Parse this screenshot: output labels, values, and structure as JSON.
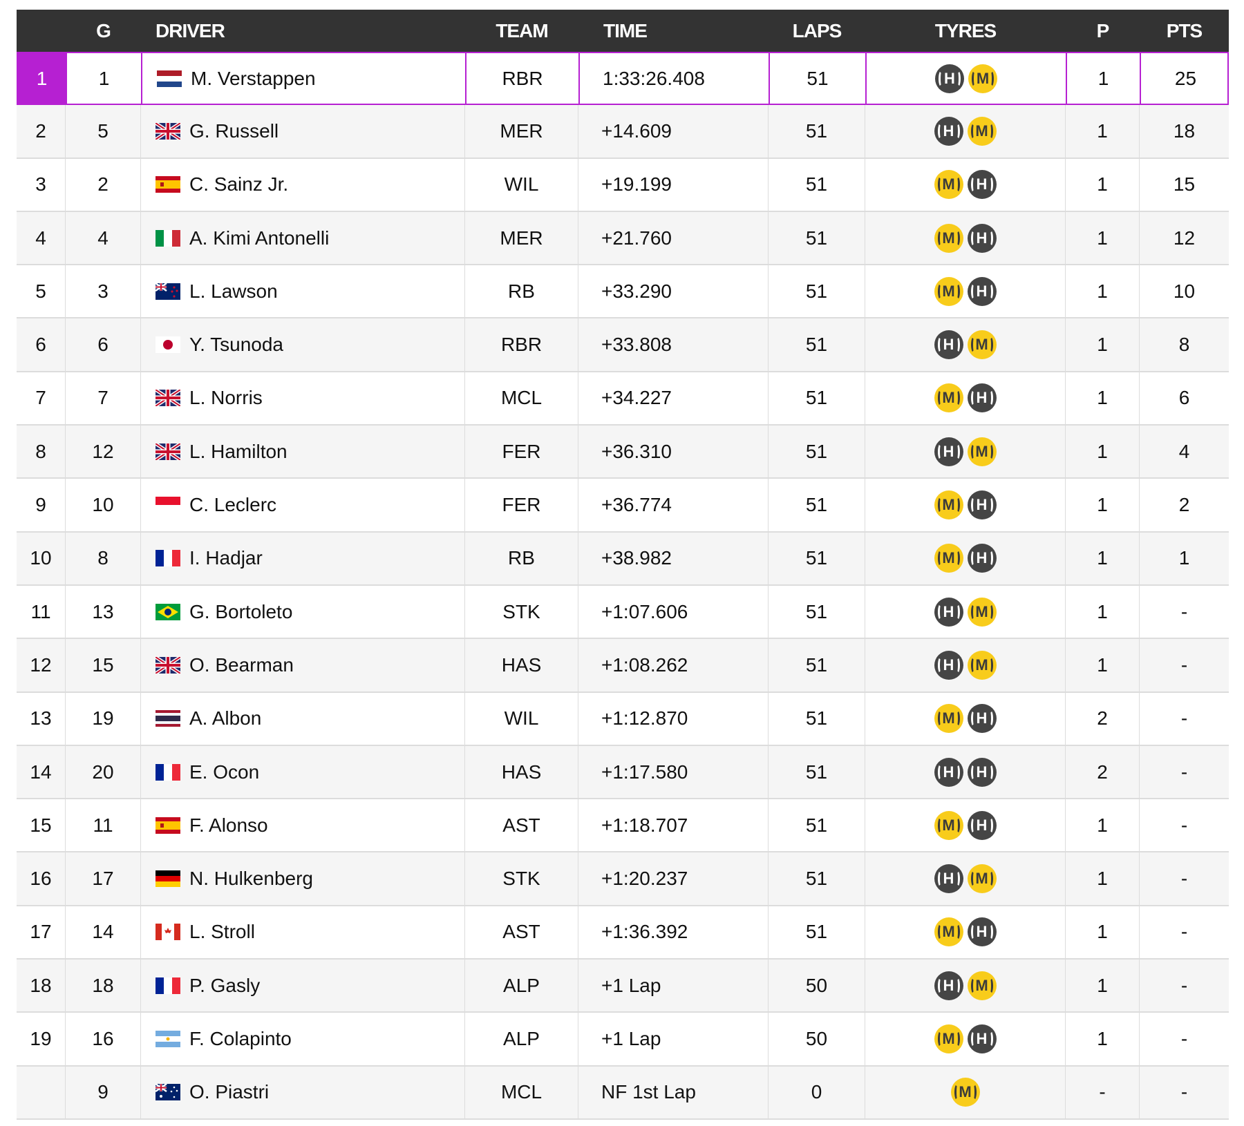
{
  "colors": {
    "header_bg": "#333333",
    "winner": "#b620d2",
    "hard": "#454545",
    "medium": "#f8cc1b"
  },
  "headers": {
    "pos": "",
    "grid": "G",
    "driver": "DRIVER",
    "team": "TEAM",
    "time": "TIME",
    "laps": "LAPS",
    "tyres": "TYRES",
    "pits": "P",
    "pts": "PTS"
  },
  "rows": [
    {
      "pos": "1",
      "grid": "1",
      "flag": "NL",
      "driver": "M. Verstappen",
      "team": "RBR",
      "time": "1:33:26.408",
      "laps": "51",
      "tyres": [
        "H",
        "M"
      ],
      "pits": "1",
      "pts": "25"
    },
    {
      "pos": "2",
      "grid": "5",
      "flag": "GB",
      "driver": "G. Russell",
      "team": "MER",
      "time": "+14.609",
      "laps": "51",
      "tyres": [
        "H",
        "M"
      ],
      "pits": "1",
      "pts": "18"
    },
    {
      "pos": "3",
      "grid": "2",
      "flag": "ES",
      "driver": "C. Sainz Jr.",
      "team": "WIL",
      "time": "+19.199",
      "laps": "51",
      "tyres": [
        "M",
        "H"
      ],
      "pits": "1",
      "pts": "15"
    },
    {
      "pos": "4",
      "grid": "4",
      "flag": "IT",
      "driver": "A. Kimi Antonelli",
      "team": "MER",
      "time": "+21.760",
      "laps": "51",
      "tyres": [
        "M",
        "H"
      ],
      "pits": "1",
      "pts": "12"
    },
    {
      "pos": "5",
      "grid": "3",
      "flag": "NZ",
      "driver": "L. Lawson",
      "team": "RB",
      "time": "+33.290",
      "laps": "51",
      "tyres": [
        "M",
        "H"
      ],
      "pits": "1",
      "pts": "10"
    },
    {
      "pos": "6",
      "grid": "6",
      "flag": "JP",
      "driver": "Y. Tsunoda",
      "team": "RBR",
      "time": "+33.808",
      "laps": "51",
      "tyres": [
        "H",
        "M"
      ],
      "pits": "1",
      "pts": "8"
    },
    {
      "pos": "7",
      "grid": "7",
      "flag": "GB",
      "driver": "L. Norris",
      "team": "MCL",
      "time": "+34.227",
      "laps": "51",
      "tyres": [
        "M",
        "H"
      ],
      "pits": "1",
      "pts": "6"
    },
    {
      "pos": "8",
      "grid": "12",
      "flag": "GB",
      "driver": "L. Hamilton",
      "team": "FER",
      "time": "+36.310",
      "laps": "51",
      "tyres": [
        "H",
        "M"
      ],
      "pits": "1",
      "pts": "4"
    },
    {
      "pos": "9",
      "grid": "10",
      "flag": "MC",
      "driver": "C. Leclerc",
      "team": "FER",
      "time": "+36.774",
      "laps": "51",
      "tyres": [
        "M",
        "H"
      ],
      "pits": "1",
      "pts": "2"
    },
    {
      "pos": "10",
      "grid": "8",
      "flag": "FR",
      "driver": "I. Hadjar",
      "team": "RB",
      "time": "+38.982",
      "laps": "51",
      "tyres": [
        "M",
        "H"
      ],
      "pits": "1",
      "pts": "1"
    },
    {
      "pos": "11",
      "grid": "13",
      "flag": "BR",
      "driver": "G. Bortoleto",
      "team": "STK",
      "time": "+1:07.606",
      "laps": "51",
      "tyres": [
        "H",
        "M"
      ],
      "pits": "1",
      "pts": "-"
    },
    {
      "pos": "12",
      "grid": "15",
      "flag": "GB",
      "driver": "O. Bearman",
      "team": "HAS",
      "time": "+1:08.262",
      "laps": "51",
      "tyres": [
        "H",
        "M"
      ],
      "pits": "1",
      "pts": "-"
    },
    {
      "pos": "13",
      "grid": "19",
      "flag": "TH",
      "driver": "A. Albon",
      "team": "WIL",
      "time": "+1:12.870",
      "laps": "51",
      "tyres": [
        "M",
        "H"
      ],
      "pits": "2",
      "pts": "-"
    },
    {
      "pos": "14",
      "grid": "20",
      "flag": "FR",
      "driver": "E. Ocon",
      "team": "HAS",
      "time": "+1:17.580",
      "laps": "51",
      "tyres": [
        "H",
        "H"
      ],
      "pits": "2",
      "pts": "-"
    },
    {
      "pos": "15",
      "grid": "11",
      "flag": "ES",
      "driver": "F. Alonso",
      "team": "AST",
      "time": "+1:18.707",
      "laps": "51",
      "tyres": [
        "M",
        "H"
      ],
      "pits": "1",
      "pts": "-"
    },
    {
      "pos": "16",
      "grid": "17",
      "flag": "DE",
      "driver": "N. Hulkenberg",
      "team": "STK",
      "time": "+1:20.237",
      "laps": "51",
      "tyres": [
        "H",
        "M"
      ],
      "pits": "1",
      "pts": "-"
    },
    {
      "pos": "17",
      "grid": "14",
      "flag": "CA",
      "driver": "L. Stroll",
      "team": "AST",
      "time": "+1:36.392",
      "laps": "51",
      "tyres": [
        "M",
        "H"
      ],
      "pits": "1",
      "pts": "-"
    },
    {
      "pos": "18",
      "grid": "18",
      "flag": "FR",
      "driver": "P. Gasly",
      "team": "ALP",
      "time": "+1 Lap",
      "laps": "50",
      "tyres": [
        "H",
        "M"
      ],
      "pits": "1",
      "pts": "-"
    },
    {
      "pos": "19",
      "grid": "16",
      "flag": "AR",
      "driver": "F. Colapinto",
      "team": "ALP",
      "time": "+1 Lap",
      "laps": "50",
      "tyres": [
        "M",
        "H"
      ],
      "pits": "1",
      "pts": "-"
    },
    {
      "pos": "",
      "grid": "9",
      "flag": "AU",
      "driver": "O. Piastri",
      "team": "MCL",
      "time": "NF 1st Lap",
      "laps": "0",
      "tyres": [
        "M"
      ],
      "pits": "-",
      "pts": "-"
    }
  ]
}
